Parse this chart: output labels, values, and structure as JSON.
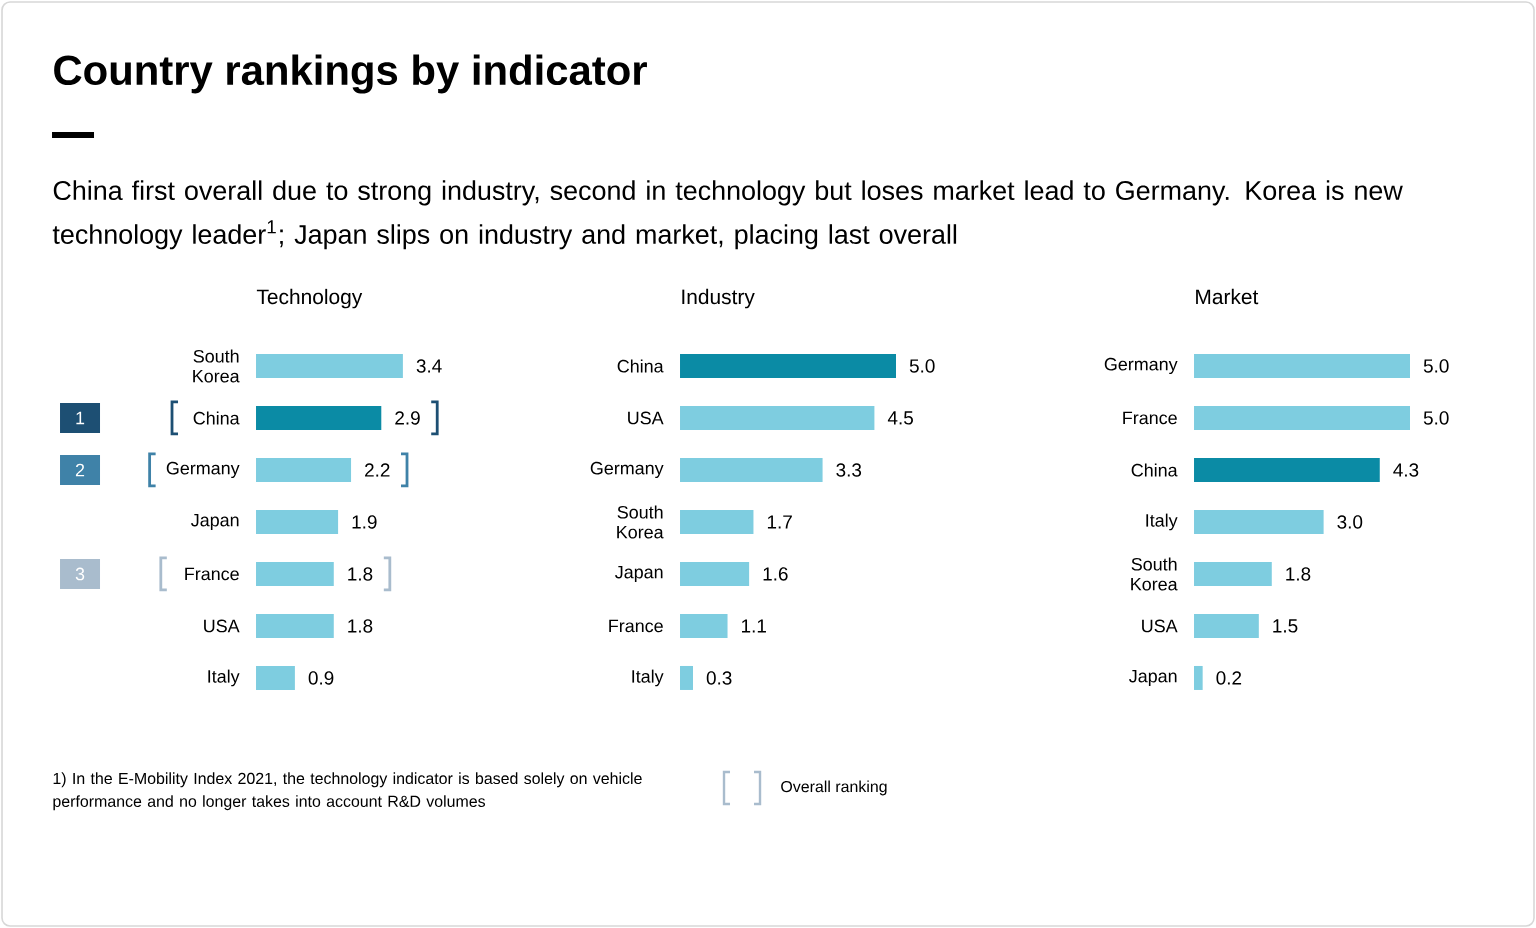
{
  "chart_data": [
    {
      "type": "other",
      "title": "Country rankings by indicator",
      "subtitle": "China first overall due to strong industry, second in technology but loses market lead to Germany. Korea is new technology leader$^{1}$; Japan slips on industry and market, placing last overall",
      "annotations": [
        "1)  In the E-Mobility Index 2021, the technology indicator is based solely on vehicle performance and no longer takes into account R&D volumes",
        "Overall ranking"
      ]
    },
    {
      "type": "bar",
      "orientation": "horizontal",
      "title": "Technology",
      "categories": [
        "South Korea",
        "China",
        "Germany",
        "Japan",
        "France",
        "USA",
        "Italy"
      ],
      "values": [
        3.4,
        2.9,
        2.2,
        1.9,
        1.8,
        1.8,
        0.9
      ],
      "value_labels": [
        "3.4",
        "2.9",
        "2.2",
        "1.9",
        "1.8",
        "1.8",
        "0.9"
      ],
      "colors": [
        "#7ecde0",
        "#0b8ba5",
        "#7ecde0",
        "#7ecde0",
        "#7ecde0",
        "#7ecde0",
        "#7ecde0"
      ],
      "annotations": [
        "1",
        "2",
        "3"
      ]
    },
    {
      "type": "bar",
      "orientation": "horizontal",
      "title": "Industry",
      "categories": [
        "China",
        "USA",
        "Germany",
        "South Korea",
        "Japan",
        "France",
        "Italy"
      ],
      "values": [
        5.0,
        4.5,
        3.3,
        1.7,
        1.6,
        1.1,
        0.3
      ],
      "value_labels": [
        "5.0",
        "4.5",
        "3.3",
        "1.7",
        "1.6",
        "1.1",
        "0.3"
      ],
      "colors": [
        "#0b8ba5",
        "#7ecde0",
        "#7ecde0",
        "#7ecde0",
        "#7ecde0",
        "#7ecde0",
        "#7ecde0"
      ]
    },
    {
      "type": "bar",
      "orientation": "horizontal",
      "title": "Market",
      "categories": [
        "Germany",
        "France",
        "China",
        "Italy",
        "South Korea",
        "USA",
        "Japan"
      ],
      "values": [
        5.0,
        5.0,
        4.3,
        3.0,
        1.8,
        1.5,
        0.2
      ],
      "value_labels": [
        "5.0",
        "5.0",
        "4.3",
        "3.0",
        "1.8",
        "1.5",
        "0.2"
      ],
      "colors": [
        "#7ecde0",
        "#7ecde0",
        "#0b8ba5",
        "#7ecde0",
        "#7ecde0",
        "#7ecde0",
        "#7ecde0"
      ]
    }
  ]
}
